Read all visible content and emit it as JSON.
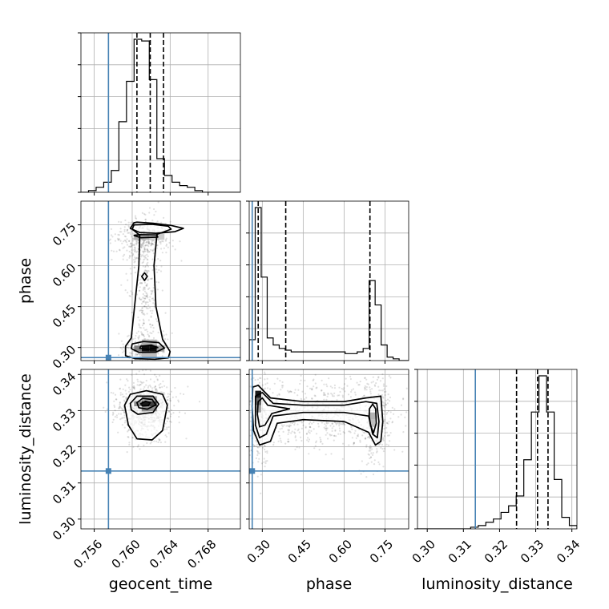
{
  "chart_data": {
    "type": "corner",
    "parameters": [
      "geocent_time",
      "phase",
      "luminosity_distance"
    ],
    "axis_labels": {
      "geocent_time": "geocent_time",
      "phase": "phase",
      "luminosity_distance": "luminosity_distance"
    },
    "ranges": {
      "geocent_time": [
        0.7546,
        0.7714
      ],
      "phase": [
        0.252,
        0.837
      ],
      "luminosity_distance": [
        0.2973,
        0.3414
      ]
    },
    "ticks": {
      "geocent_time": [
        "0.756",
        "0.760",
        "0.764",
        "0.768"
      ],
      "phase": [
        "0.30",
        "0.45",
        "0.60",
        "0.75"
      ],
      "luminosity_distance": [
        "0.30",
        "0.31",
        "0.32",
        "0.33",
        "0.34"
      ]
    },
    "truths": {
      "geocent_time": 0.7575,
      "phase": 0.263,
      "luminosity_distance": 0.3133
    },
    "truth_color": "#4682b4",
    "quantiles": {
      "geocent_time": [
        0.7605,
        0.7619,
        0.7633
      ],
      "phase": [
        0.285,
        0.386,
        0.695
      ],
      "luminosity_distance": [
        0.3247,
        0.3305,
        0.3334
      ]
    },
    "histograms": {
      "geocent_time": {
        "edges": [
          0.7546,
          0.7554,
          0.7562,
          0.757,
          0.7578,
          0.7586,
          0.7594,
          0.7602,
          0.761,
          0.7618,
          0.7626,
          0.7634,
          0.7642,
          0.765,
          0.7658,
          0.7666,
          0.7674,
          0.7682,
          0.769,
          0.7698,
          0.7706,
          0.7714
        ],
        "counts": [
          0,
          0.01,
          0.03,
          0.06,
          0.13,
          0.42,
          0.66,
          0.91,
          0.9,
          0.67,
          0.2,
          0.1,
          0.06,
          0.04,
          0.03,
          0.01,
          0,
          0,
          0,
          0,
          0
        ]
      },
      "phase": {
        "edges": [
          0.252,
          0.274,
          0.296,
          0.318,
          0.34,
          0.362,
          0.384,
          0.406,
          0.428,
          0.45,
          0.472,
          0.494,
          0.516,
          0.538,
          0.56,
          0.582,
          0.604,
          0.626,
          0.648,
          0.67,
          0.692,
          0.714,
          0.736,
          0.758,
          0.78,
          0.802,
          0.837
        ],
        "counts": [
          0.12,
          0.88,
          0.48,
          0.13,
          0.09,
          0.07,
          0.06,
          0.05,
          0.05,
          0.05,
          0.05,
          0.05,
          0.05,
          0.05,
          0.05,
          0.05,
          0.04,
          0.04,
          0.05,
          0.07,
          0.46,
          0.32,
          0.09,
          0.02,
          0.01,
          0
        ]
      },
      "luminosity_distance": {
        "edges": [
          0.2973,
          0.2994,
          0.3015,
          0.3036,
          0.3057,
          0.3078,
          0.3099,
          0.312,
          0.3141,
          0.3162,
          0.3183,
          0.3204,
          0.3225,
          0.3246,
          0.3267,
          0.3288,
          0.3309,
          0.333,
          0.3351,
          0.3372,
          0.3393,
          0.3414
        ],
        "counts": [
          0,
          0,
          0,
          0,
          0,
          0,
          0,
          0.01,
          0.02,
          0.04,
          0.06,
          0.1,
          0.14,
          0.2,
          0.42,
          0.71,
          0.93,
          0.71,
          0.3,
          0.07,
          0.02
        ]
      }
    },
    "bulk_2d": {
      "geocent_time_vs_phase": [
        {
          "cx": 0.7612,
          "cy": 0.7,
          "sx": 0.0015,
          "sy": 0.035,
          "n": 340
        },
        {
          "cx": 0.7614,
          "cy": 0.3,
          "sx": 0.0011,
          "sy": 0.028,
          "n": 240
        },
        {
          "cx": 0.7614,
          "cy": 0.52,
          "sx": 0.0009,
          "sy": 0.13,
          "n": 300
        }
      ],
      "geocent_time_vs_luminosity_distance": [
        {
          "cx": 0.7614,
          "cy": 0.3305,
          "sx": 0.0015,
          "sy": 0.0042,
          "n": 800
        }
      ],
      "phase_vs_luminosity_distance": [
        {
          "cx": 0.52,
          "cy": 0.329,
          "sx": 0.14,
          "sy": 0.0048,
          "n": 700
        },
        {
          "cx": 0.29,
          "cy": 0.327,
          "sx": 0.02,
          "sy": 0.0065,
          "n": 240
        },
        {
          "cx": 0.715,
          "cy": 0.327,
          "sx": 0.028,
          "sy": 0.0065,
          "n": 240
        }
      ]
    },
    "contours_2d": {
      "geocent_time_vs_phase": [
        [
          [
            0.7602,
            0.758
          ],
          [
            0.7598,
            0.737
          ],
          [
            0.7608,
            0.722
          ],
          [
            0.7625,
            0.719
          ],
          [
            0.7645,
            0.725
          ],
          [
            0.7654,
            0.737
          ],
          [
            0.7641,
            0.748
          ],
          [
            0.7622,
            0.756
          ],
          [
            0.7605,
            0.76
          ]
        ],
        [
          [
            0.7602,
            0.711
          ],
          [
            0.7609,
            0.703
          ],
          [
            0.7627,
            0.705
          ],
          [
            0.7626,
            0.713
          ],
          [
            0.7608,
            0.714
          ]
        ],
        [
          [
            0.7602,
            0.75
          ],
          [
            0.76,
            0.734
          ],
          [
            0.7608,
            0.712
          ],
          [
            0.7607,
            0.6
          ],
          [
            0.7604,
            0.5
          ],
          [
            0.7601,
            0.4
          ],
          [
            0.7599,
            0.335
          ],
          [
            0.7593,
            0.305
          ],
          [
            0.7593,
            0.27
          ],
          [
            0.7603,
            0.259
          ],
          [
            0.7624,
            0.257
          ],
          [
            0.7638,
            0.262
          ],
          [
            0.764,
            0.285
          ],
          [
            0.7632,
            0.33
          ],
          [
            0.7625,
            0.45
          ],
          [
            0.7623,
            0.6
          ],
          [
            0.7626,
            0.715
          ],
          [
            0.7641,
            0.734
          ],
          [
            0.7638,
            0.745
          ],
          [
            0.7621,
            0.752
          ]
        ],
        [
          [
            0.7613,
            0.574
          ],
          [
            0.7616,
            0.561
          ],
          [
            0.7613,
            0.546
          ],
          [
            0.761,
            0.561
          ]
        ],
        [
          [
            0.76,
            0.313
          ],
          [
            0.7612,
            0.322
          ],
          [
            0.7628,
            0.318
          ],
          [
            0.7634,
            0.298
          ],
          [
            0.7625,
            0.283
          ],
          [
            0.7607,
            0.282
          ],
          [
            0.7599,
            0.296
          ]
        ],
        [
          [
            0.7609,
            0.305
          ],
          [
            0.762,
            0.309
          ],
          [
            0.7627,
            0.3
          ],
          [
            0.7617,
            0.293
          ],
          [
            0.7608,
            0.297
          ]
        ]
      ],
      "geocent_time_vs_luminosity_distance": [
        [
          [
            0.7592,
            0.3315
          ],
          [
            0.7598,
            0.3345
          ],
          [
            0.7615,
            0.3355
          ],
          [
            0.7632,
            0.3345
          ],
          [
            0.7637,
            0.3315
          ],
          [
            0.7632,
            0.3245
          ],
          [
            0.7621,
            0.3219
          ],
          [
            0.7605,
            0.3222
          ],
          [
            0.7596,
            0.326
          ]
        ],
        [
          [
            0.7598,
            0.332
          ],
          [
            0.7605,
            0.334
          ],
          [
            0.7622,
            0.334
          ],
          [
            0.7628,
            0.3318
          ],
          [
            0.7622,
            0.3295
          ],
          [
            0.7606,
            0.329
          ],
          [
            0.7599,
            0.3302
          ]
        ],
        [
          [
            0.7605,
            0.3322
          ],
          [
            0.7611,
            0.3334
          ],
          [
            0.7621,
            0.3331
          ],
          [
            0.7625,
            0.3316
          ],
          [
            0.7616,
            0.3304
          ],
          [
            0.7607,
            0.3308
          ]
        ],
        [
          [
            0.7609,
            0.3319
          ],
          [
            0.7614,
            0.3326
          ],
          [
            0.7619,
            0.3322
          ],
          [
            0.7617,
            0.3314
          ],
          [
            0.7611,
            0.3313
          ]
        ]
      ],
      "phase_vs_luminosity_distance": [
        [
          [
            0.265,
            0.3365
          ],
          [
            0.285,
            0.337
          ],
          [
            0.33,
            0.3335
          ],
          [
            0.45,
            0.3325
          ],
          [
            0.6,
            0.3325
          ],
          [
            0.68,
            0.3335
          ],
          [
            0.735,
            0.334
          ],
          [
            0.742,
            0.327
          ],
          [
            0.735,
            0.3215
          ],
          [
            0.715,
            0.3205
          ],
          [
            0.69,
            0.324
          ],
          [
            0.6,
            0.327
          ],
          [
            0.45,
            0.3275
          ],
          [
            0.355,
            0.3265
          ],
          [
            0.33,
            0.3215
          ],
          [
            0.29,
            0.3205
          ],
          [
            0.268,
            0.3245
          ],
          [
            0.263,
            0.331
          ]
        ],
        [
          [
            0.275,
            0.334
          ],
          [
            0.3,
            0.335
          ],
          [
            0.34,
            0.332
          ],
          [
            0.45,
            0.3315
          ],
          [
            0.6,
            0.3315
          ],
          [
            0.68,
            0.3325
          ],
          [
            0.72,
            0.332
          ],
          [
            0.728,
            0.327
          ],
          [
            0.722,
            0.3225
          ],
          [
            0.705,
            0.3235
          ],
          [
            0.69,
            0.3285
          ],
          [
            0.6,
            0.3295
          ],
          [
            0.45,
            0.3295
          ],
          [
            0.34,
            0.3285
          ],
          [
            0.315,
            0.3235
          ],
          [
            0.29,
            0.3225
          ],
          [
            0.275,
            0.326
          ]
        ],
        [
          [
            0.285,
            0.3325
          ],
          [
            0.3,
            0.3335
          ],
          [
            0.32,
            0.3315
          ],
          [
            0.4,
            0.3305
          ],
          [
            0.335,
            0.3292
          ],
          [
            0.31,
            0.326
          ],
          [
            0.29,
            0.3255
          ],
          [
            0.282,
            0.329
          ]
        ],
        [
          [
            0.693,
            0.3305
          ],
          [
            0.705,
            0.3318
          ],
          [
            0.716,
            0.3305
          ],
          [
            0.718,
            0.3265
          ],
          [
            0.708,
            0.3238
          ],
          [
            0.697,
            0.326
          ],
          [
            0.692,
            0.3285
          ]
        ]
      ]
    },
    "hist2d_cells": {
      "geocent_time_vs_phase": [
        {
          "x0": 0.761,
          "x1": 0.7618,
          "y0": 0.285,
          "y1": 0.307,
          "shade": 0.95
        },
        {
          "x0": 0.7618,
          "x1": 0.7626,
          "y0": 0.285,
          "y1": 0.307,
          "shade": 0.95
        },
        {
          "x0": 0.7602,
          "x1": 0.761,
          "y0": 0.285,
          "y1": 0.307,
          "shade": 0.5
        },
        {
          "x0": 0.7626,
          "x1": 0.7634,
          "y0": 0.285,
          "y1": 0.307,
          "shade": 0.35
        },
        {
          "x0": 0.761,
          "x1": 0.7626,
          "y0": 0.307,
          "y1": 0.329,
          "shade": 0.3
        },
        {
          "x0": 0.761,
          "x1": 0.7626,
          "y0": 0.263,
          "y1": 0.285,
          "shade": 0.25
        },
        {
          "x0": 0.7602,
          "x1": 0.7618,
          "y0": 0.695,
          "y1": 0.717,
          "shade": 0.3
        },
        {
          "x0": 0.7618,
          "x1": 0.7634,
          "y0": 0.695,
          "y1": 0.717,
          "shade": 0.2
        }
      ],
      "geocent_time_vs_luminosity_distance": [
        {
          "x0": 0.761,
          "x1": 0.7618,
          "y0": 0.3312,
          "y1": 0.3326,
          "shade": 0.9
        },
        {
          "x0": 0.7618,
          "x1": 0.7626,
          "y0": 0.3312,
          "y1": 0.3326,
          "shade": 0.75
        },
        {
          "x0": 0.7602,
          "x1": 0.761,
          "y0": 0.3312,
          "y1": 0.3326,
          "shade": 0.45
        },
        {
          "x0": 0.761,
          "x1": 0.7626,
          "y0": 0.3298,
          "y1": 0.3312,
          "shade": 0.45
        },
        {
          "x0": 0.761,
          "x1": 0.7626,
          "y0": 0.3326,
          "y1": 0.334,
          "shade": 0.35
        }
      ],
      "phase_vs_luminosity_distance": [
        {
          "x0": 0.274,
          "x1": 0.296,
          "y0": 0.3335,
          "y1": 0.3355,
          "shade": 0.9
        },
        {
          "x0": 0.274,
          "x1": 0.296,
          "y0": 0.3315,
          "y1": 0.3335,
          "shade": 0.6
        },
        {
          "x0": 0.274,
          "x1": 0.296,
          "y0": 0.3295,
          "y1": 0.3315,
          "shade": 0.35
        },
        {
          "x0": 0.692,
          "x1": 0.714,
          "y0": 0.3275,
          "y1": 0.3295,
          "shade": 0.3
        },
        {
          "x0": 0.692,
          "x1": 0.714,
          "y0": 0.3255,
          "y1": 0.3275,
          "shade": 0.25
        }
      ]
    },
    "grid": true
  }
}
